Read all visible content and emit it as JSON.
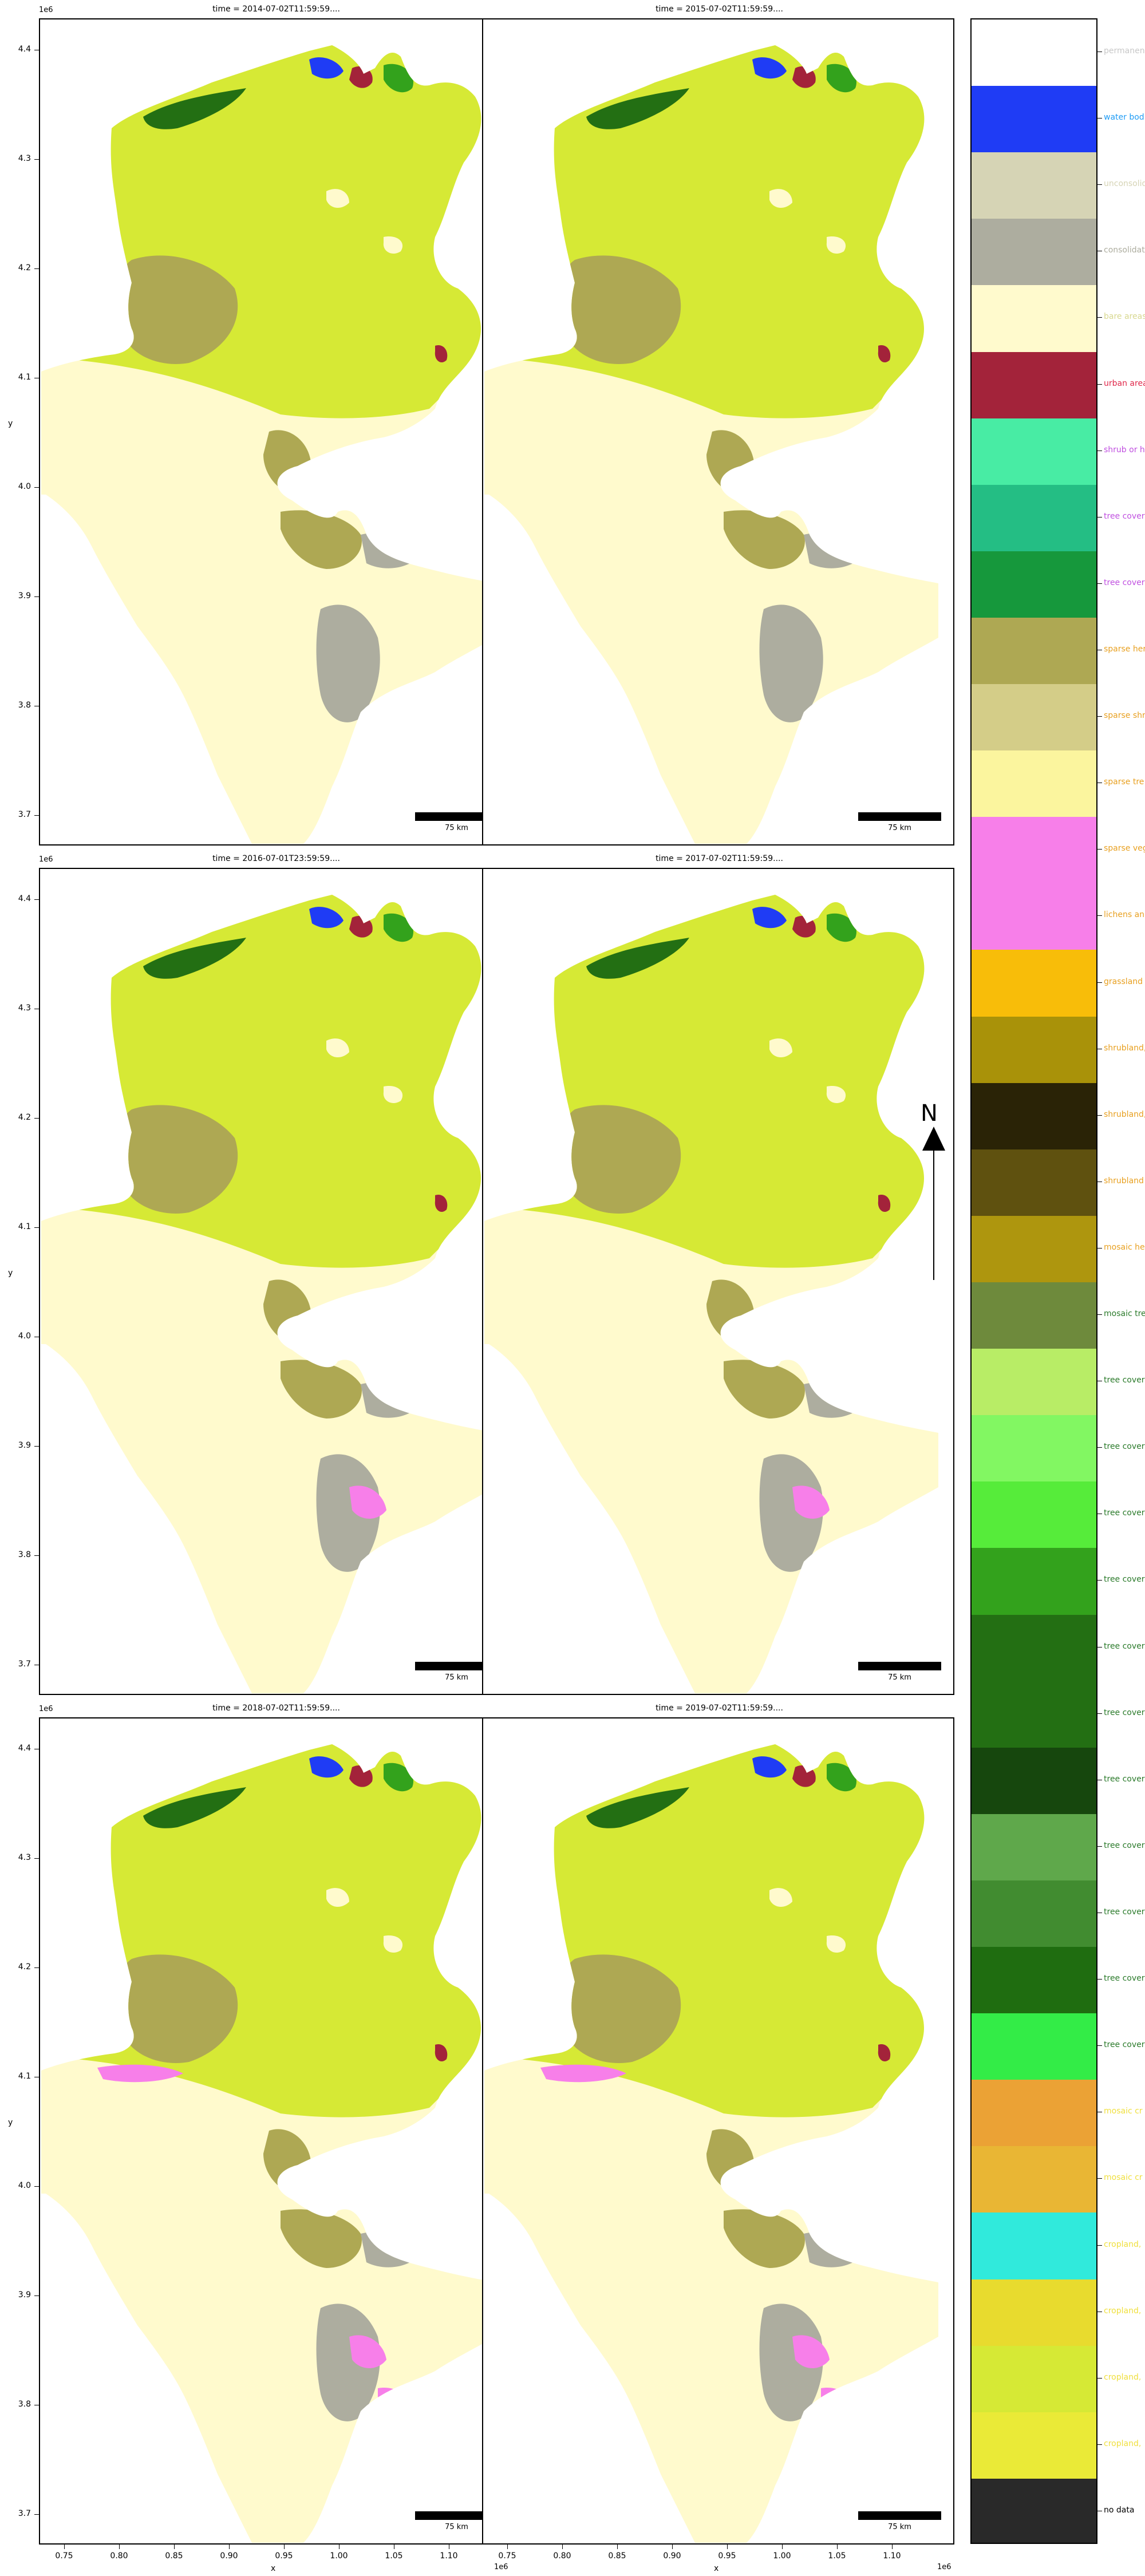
{
  "panels": [
    {
      "id": "p2014",
      "title": "time = 2014-07-02T11:59:59...."
    },
    {
      "id": "p2015",
      "title": "time = 2015-07-02T11:59:59...."
    },
    {
      "id": "p2016",
      "title": "time = 2016-07-01T23:59:59...."
    },
    {
      "id": "p2017",
      "title": "time = 2017-07-02T11:59:59...."
    },
    {
      "id": "p2018",
      "title": "time = 2018-07-02T11:59:59...."
    },
    {
      "id": "p2019",
      "title": "time = 2019-07-02T11:59:59...."
    }
  ],
  "axes": {
    "ylabel": "y",
    "xlabel": "x",
    "y_offset": "1e6",
    "x_offset": "1e6",
    "yticks": [
      "4.4",
      "4.3",
      "4.2",
      "4.1",
      "4.0",
      "3.9",
      "3.8",
      "3.7"
    ],
    "xticks": [
      "0.75",
      "0.80",
      "0.85",
      "0.90",
      "0.95",
      "1.00",
      "1.05",
      "1.10"
    ]
  },
  "scalebar": {
    "label": "75 km"
  },
  "north_arrow": {
    "label": "N"
  },
  "legend": {
    "entries": [
      {
        "label": "permanent",
        "color": "#ffffff",
        "text_color": "#c8c8c8"
      },
      {
        "label": "water bod",
        "color": "#1f3cf5",
        "text_color": "#1f9cf5"
      },
      {
        "label": "unconsolid",
        "color": "#d6d4b5",
        "text_color": "#d6d4b5"
      },
      {
        "label": "consolidat",
        "color": "#adad9f",
        "text_color": "#adad9f"
      },
      {
        "label": "bare areas",
        "color": "#fffacd",
        "text_color": "#d8d890"
      },
      {
        "label": "urban area",
        "color": "#a3233a",
        "text_color": "#e0284a"
      },
      {
        "label": "shrub or h",
        "color": "#48eca4",
        "text_color": "#c050e0"
      },
      {
        "label": "tree cover",
        "color": "#24be84",
        "text_color": "#c050e0"
      },
      {
        "label": "tree cover",
        "color": "#16983c",
        "text_color": "#c050e0"
      },
      {
        "label": "sparse her",
        "color": "#aea853",
        "text_color": "#e8a020"
      },
      {
        "label": "sparse shr",
        "color": "#d4cd88",
        "text_color": "#e8a020"
      },
      {
        "label": "sparse tre",
        "color": "#fbf59e",
        "text_color": "#e8a020"
      },
      {
        "label": "sparse veg",
        "color": "#f77fe9",
        "text_color": "#e8a020"
      },
      {
        "label": "lichens an",
        "color": "#f77fe9",
        "text_color": "#e8a020"
      },
      {
        "label": "grassland",
        "color": "#f8bd09",
        "text_color": "#e8a020"
      },
      {
        "label": "shrubland,",
        "color": "#a99209",
        "text_color": "#e8a020"
      },
      {
        "label": "shrubland,",
        "color": "#2a2306",
        "text_color": "#e8a020"
      },
      {
        "label": "shrubland",
        "color": "#5f510f",
        "text_color": "#e8a020"
      },
      {
        "label": "mosaic her",
        "color": "#ae960e",
        "text_color": "#e8a020"
      },
      {
        "label": "mosaic tre",
        "color": "#6e8a3c",
        "text_color": "#2a7a2a"
      },
      {
        "label": "tree cover",
        "color": "#b8ed66",
        "text_color": "#2a7a2a"
      },
      {
        "label": "tree cover",
        "color": "#82f762",
        "text_color": "#2a7a2a"
      },
      {
        "label": "tree cover",
        "color": "#56ec3a",
        "text_color": "#2a7a2a"
      },
      {
        "label": "tree cover",
        "color": "#33a21c",
        "text_color": "#2a7a2a"
      },
      {
        "label": "tree cover",
        "color": "#236f13",
        "text_color": "#2a7a2a"
      },
      {
        "label": "tree cover",
        "color": "#236f13",
        "text_color": "#2a7a2a"
      },
      {
        "label": "tree cover",
        "color": "#16470d",
        "text_color": "#2a7a2a"
      },
      {
        "label": "tree cover",
        "color": "#5fa84b",
        "text_color": "#2a7a2a"
      },
      {
        "label": "tree cover",
        "color": "#418c30",
        "text_color": "#2a7a2a"
      },
      {
        "label": "tree cover",
        "color": "#1f6d10",
        "text_color": "#2a7a2a"
      },
      {
        "label": "tree cover",
        "color": "#33ec47",
        "text_color": "#2a7a2a"
      },
      {
        "label": "mosaic cr",
        "color": "#eba235",
        "text_color": "#f0e040"
      },
      {
        "label": "mosaic cr",
        "color": "#e9b634",
        "text_color": "#f0e040"
      },
      {
        "label": "cropland,",
        "color": "#30eadc",
        "text_color": "#f0e040"
      },
      {
        "label": "cropland,",
        "color": "#e8db2e",
        "text_color": "#f0e040"
      },
      {
        "label": "cropland,",
        "color": "#d6e935",
        "text_color": "#f0e040"
      },
      {
        "label": "cropland,",
        "color": "#eaea37",
        "text_color": "#f0e040"
      },
      {
        "label": "no data",
        "color": "#292929",
        "text_color": "#000000"
      }
    ]
  }
}
